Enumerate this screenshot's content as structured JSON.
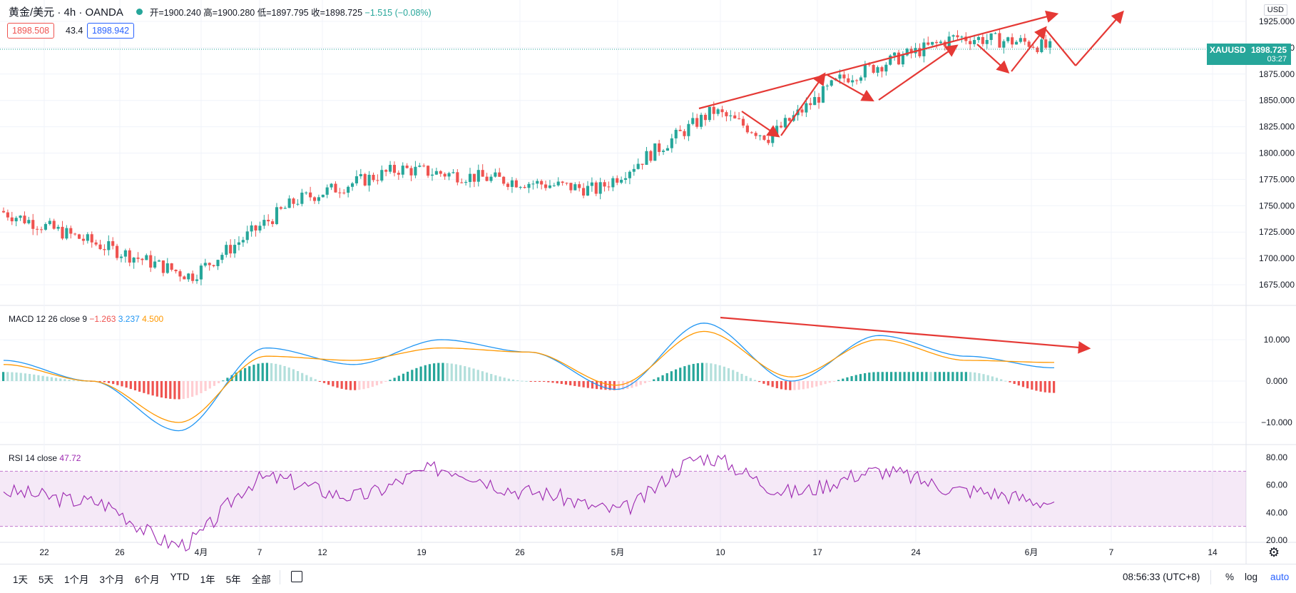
{
  "header": {
    "symbol": "黄金/美元 · 4h · OANDA",
    "open": "开=1900.240",
    "high": "高=1900.280",
    "low": "低=1897.795",
    "close": "收=1898.725",
    "change": "−1.515 (−0.08%)"
  },
  "quote": {
    "bid": "1898.508",
    "spread": "43.4",
    "ask": "1898.942"
  },
  "currency": "USD",
  "last_price": {
    "symbol": "XAUUSD",
    "price": "1898.725",
    "countdown": "03:27"
  },
  "macd": {
    "label": "MACD 12 26 close 9",
    "hist": "−1.263",
    "macd": "3.237",
    "signal": "4.500"
  },
  "rsi": {
    "label": "RSI 14 close",
    "value": "47.72"
  },
  "bottom_bar": {
    "ranges": [
      "1天",
      "5天",
      "1个月",
      "3个月",
      "6个月",
      "YTD",
      "1年",
      "5年",
      "全部"
    ],
    "time": "08:56:33 (UTC+8)",
    "percent": "%",
    "log": "log",
    "auto": "auto"
  },
  "colors": {
    "up": "#26a69a",
    "down": "#ef5350",
    "macd_line": "#2196f3",
    "signal_line": "#ff9800",
    "rsi_line": "#9c27b0",
    "annotation": "#e53935"
  },
  "chart_data": [
    {
      "type": "line",
      "title": "黄金/美元 · 4h · OANDA",
      "x_tick_labels": [
        "22",
        "26",
        "4月",
        "7",
        "12",
        "19",
        "26",
        "5月",
        "10",
        "17",
        "24",
        "6月",
        "7",
        "14"
      ],
      "y_tick_labels": [
        "1925.000",
        "1900.000",
        "1875.000",
        "1850.000",
        "1825.000",
        "1800.000",
        "1775.000",
        "1750.000",
        "1725.000",
        "1700.000",
        "1675.000"
      ],
      "ylim": [
        1660,
        1938
      ],
      "series": [
        {
          "name": "XAUUSD",
          "x": [
            "22",
            "26",
            "4月",
            "7",
            "12",
            "19",
            "26",
            "5月",
            "10",
            "17",
            "24",
            "6月"
          ],
          "values": [
            1738,
            1735,
            1695,
            1742,
            1742,
            1780,
            1778,
            1768,
            1840,
            1868,
            1885,
            1899
          ]
        }
      ],
      "key_points": [
        {
          "x": "3月18",
          "y": 1745
        },
        {
          "x": "3月31",
          "y": 1683
        },
        {
          "x": "4月9",
          "y": 1755
        },
        {
          "x": "4月21",
          "y": 1785
        },
        {
          "x": "5月5",
          "y": 1765
        },
        {
          "x": "5月10",
          "y": 1840
        },
        {
          "x": "5月14",
          "y": 1815
        },
        {
          "x": "5月19",
          "y": 1870
        },
        {
          "x": "5月26",
          "y": 1910
        },
        {
          "x": "6月1",
          "y": 1905
        },
        {
          "x": "6月3",
          "y": 1898.7
        }
      ],
      "annotations": [
        "rising trendline",
        "zigzag projection arrows"
      ]
    },
    {
      "type": "line",
      "title": "MACD 12 26 close 9",
      "y_tick_labels": [
        "10.000",
        "0.000",
        "−10.000"
      ],
      "ylim": [
        -15,
        16
      ],
      "series": [
        {
          "name": "MACD",
          "values": [
            5,
            0,
            -12,
            8,
            4,
            10,
            7,
            -2,
            14,
            0,
            11,
            6,
            3.2
          ]
        },
        {
          "name": "Signal",
          "values": [
            4,
            0,
            -10,
            6,
            5,
            8,
            7,
            -1,
            12,
            1,
            10,
            5,
            4.5
          ]
        }
      ],
      "annotations": [
        "falling divergence line"
      ]
    },
    {
      "type": "line",
      "title": "RSI 14 close",
      "y_tick_labels": [
        "80.00",
        "60.00",
        "40.00",
        "20.00"
      ],
      "ylim": [
        15,
        85
      ],
      "bands": [
        30,
        70
      ],
      "series": [
        {
          "name": "RSI",
          "values": [
            55,
            48,
            17,
            65,
            52,
            72,
            55,
            42,
            80,
            55,
            70,
            56,
            47.72
          ]
        }
      ]
    }
  ]
}
